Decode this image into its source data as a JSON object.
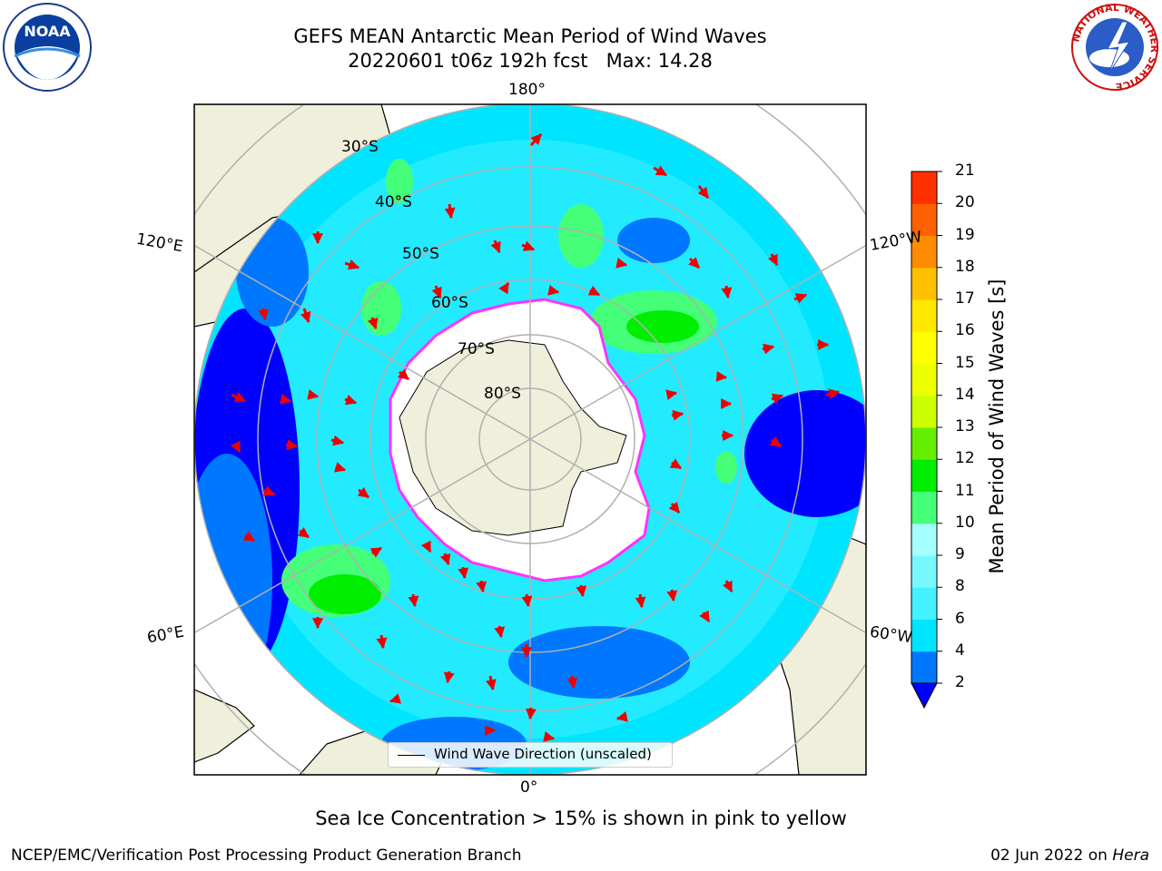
{
  "title_line1": "GEFS MEAN Antarctic Mean Period of Wind Waves",
  "title_line2": "20220601 t06z 192h fcst   Max: 14.28",
  "subtitle": "Sea Ice Concentration > 15% is shown in pink to yellow",
  "footer_left": "NCEP/EMC/Verification Post Processing Product Generation Branch",
  "footer_date": "02 Jun 2022 on",
  "footer_host": "Hera",
  "logos": {
    "noaa_text": "NOAA",
    "nws_text": "NATIONAL WEATHER SERVICE"
  },
  "map": {
    "projection": "south polar stereographic",
    "longitude_labels": [
      "180°",
      "120°E",
      "120°W",
      "60°E",
      "60°W",
      "0°"
    ],
    "latitude_labels": [
      "30°S",
      "40°S",
      "50°S",
      "60°S",
      "70°S",
      "80°S"
    ],
    "land_color": "#efefdc",
    "ice_color": "#ffffff",
    "sea_ice_edge_colors": [
      "#ff33ff",
      "#ffd000"
    ],
    "arrow_color": "#ff0000",
    "grid_color": "#b0b0b0"
  },
  "legend": {
    "label": "Wind Wave Direction (unscaled)"
  },
  "colorbar": {
    "label": "Mean Period of Wind Waves [s]",
    "ticks": [
      "2",
      "4",
      "6",
      "8",
      "9",
      "10",
      "11",
      "12",
      "13",
      "14",
      "15",
      "16",
      "17",
      "18",
      "19",
      "20",
      "21"
    ],
    "colors": [
      "#0077ff",
      "#00e5ff",
      "#44f1ff",
      "#77f8ff",
      "#a6ffff",
      "#44ff77",
      "#00ee00",
      "#66ee00",
      "#ccff00",
      "#eeff00",
      "#ffff00",
      "#ffe800",
      "#ffc000",
      "#ff8c00",
      "#ff6000",
      "#ff3000",
      "#ff0000"
    ],
    "under_color": "#0000ff",
    "extend": "min"
  }
}
